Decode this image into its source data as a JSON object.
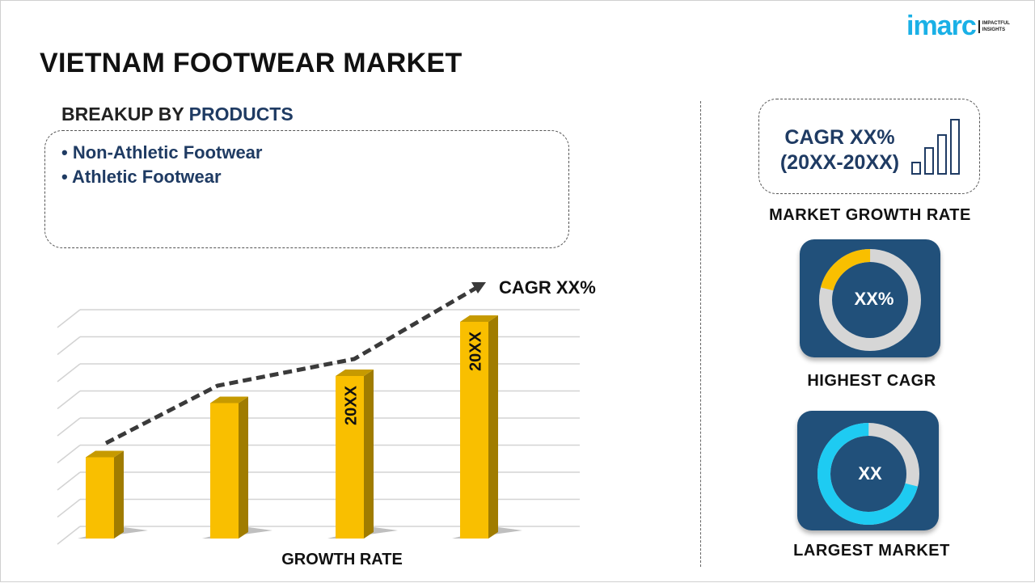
{
  "title": "VIETNAM FOOTWEAR MARKET",
  "logo": {
    "word": "imarc",
    "tagline_1": "IMPACTFUL",
    "tagline_2": "INSIGHTS",
    "color": "#1ab0e6"
  },
  "breakup": {
    "prefix": "BREAKUP BY ",
    "highlight": "PRODUCTS",
    "items": [
      "• Non-Athletic Footwear",
      "• Athletic Footwear"
    ]
  },
  "right": {
    "cagr_line1": "CAGR XX%",
    "cagr_line2": "(20XX-20XX)",
    "market_growth_label": "MARKET GROWTH RATE",
    "highest_cagr": {
      "value": "XX%",
      "label": "HIGHEST CAGR",
      "highlight_fraction": 0.21,
      "highlight_color": "#f9bf00"
    },
    "largest_market": {
      "value": "XX",
      "label": "LARGEST MARKET",
      "highlight_fraction": 0.71,
      "highlight_color": "#1ecbf2"
    }
  },
  "chart_data": {
    "type": "bar",
    "categories": [
      "",
      "",
      "",
      ""
    ],
    "values": [
      3,
      5,
      6,
      8
    ],
    "bar_labels": [
      "",
      "",
      "20XX",
      "20XX"
    ],
    "trend_annotation": "CAGR XX%",
    "xlabel": "GROWTH RATE",
    "ylabel": "",
    "ylim": [
      0,
      9
    ],
    "grid": true,
    "bar_color": "#f9bf00"
  }
}
